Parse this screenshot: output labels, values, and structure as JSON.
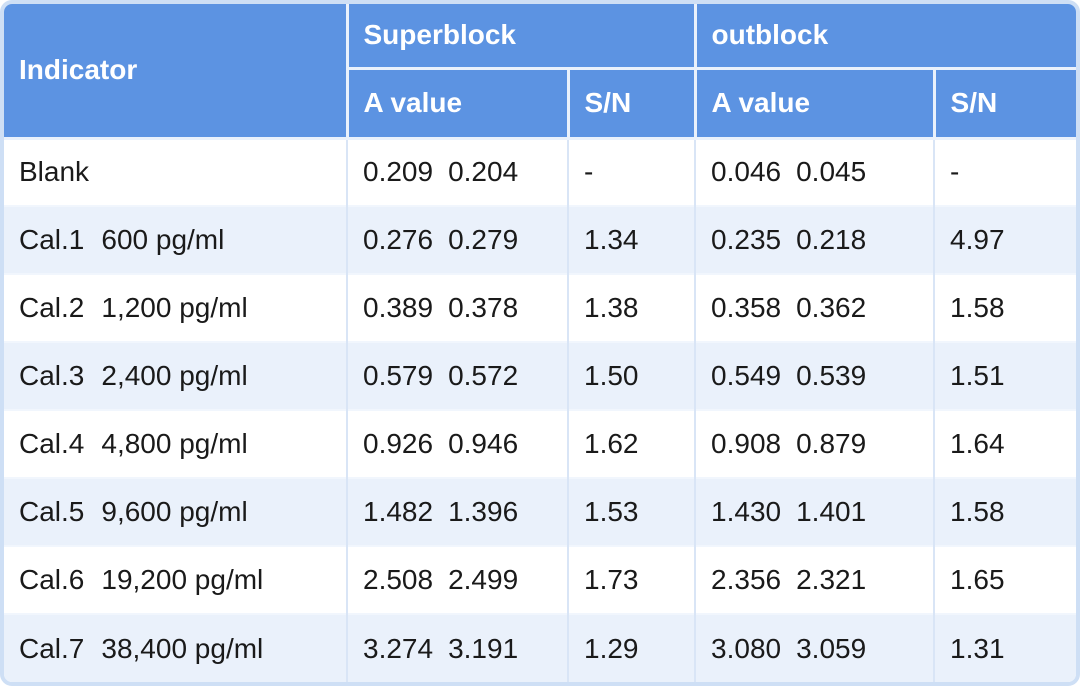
{
  "chart_data": {
    "type": "table",
    "header": {
      "indicator": "Indicator",
      "groups": [
        {
          "label": "Superblock",
          "sub": [
            "A value",
            "S/N"
          ]
        },
        {
          "label": "outblock",
          "sub": [
            "A value",
            "S/N"
          ]
        }
      ]
    },
    "rows": [
      {
        "name": "Blank",
        "conc": "",
        "super_a1": "0.209",
        "super_a2": "0.204",
        "super_sn": "-",
        "out_a1": "0.046",
        "out_a2": "0.045",
        "out_sn": "-"
      },
      {
        "name": "Cal.1",
        "conc": "600 pg/ml",
        "super_a1": "0.276",
        "super_a2": "0.279",
        "super_sn": "1.34",
        "out_a1": "0.235",
        "out_a2": "0.218",
        "out_sn": "4.97"
      },
      {
        "name": "Cal.2",
        "conc": "1,200 pg/ml",
        "super_a1": "0.389",
        "super_a2": "0.378",
        "super_sn": "1.38",
        "out_a1": "0.358",
        "out_a2": "0.362",
        "out_sn": "1.58"
      },
      {
        "name": "Cal.3",
        "conc": "2,400 pg/ml",
        "super_a1": "0.579",
        "super_a2": "0.572",
        "super_sn": "1.50",
        "out_a1": "0.549",
        "out_a2": "0.539",
        "out_sn": "1.51"
      },
      {
        "name": "Cal.4",
        "conc": "4,800 pg/ml",
        "super_a1": "0.926",
        "super_a2": "0.946",
        "super_sn": "1.62",
        "out_a1": "0.908",
        "out_a2": "0.879",
        "out_sn": "1.64"
      },
      {
        "name": "Cal.5",
        "conc": "9,600 pg/ml",
        "super_a1": "1.482",
        "super_a2": "1.396",
        "super_sn": "1.53",
        "out_a1": "1.430",
        "out_a2": "1.401",
        "out_sn": "1.58"
      },
      {
        "name": "Cal.6",
        "conc": "19,200 pg/ml",
        "super_a1": "2.508",
        "super_a2": "2.499",
        "super_sn": "1.73",
        "out_a1": "2.356",
        "out_a2": "2.321",
        "out_sn": "1.65"
      },
      {
        "name": "Cal.7",
        "conc": "38,400 pg/ml",
        "super_a1": "3.274",
        "super_a2": "3.191",
        "super_sn": "1.29",
        "out_a1": "3.080",
        "out_a2": "3.059",
        "out_sn": "1.31"
      }
    ]
  },
  "colors": {
    "header_bg": "#5C93E2",
    "header_text": "#FFFFFF",
    "row_bg_white": "#FFFFFF",
    "row_bg_alt": "#EAF1FB",
    "grid_line_vertical": "#D9E5F6",
    "grid_line_horizontal": "#F1F6FD",
    "header_divider": "#E9F1FC",
    "outer_border": "#CEDFF5",
    "body_text": "#1A1A1A"
  }
}
